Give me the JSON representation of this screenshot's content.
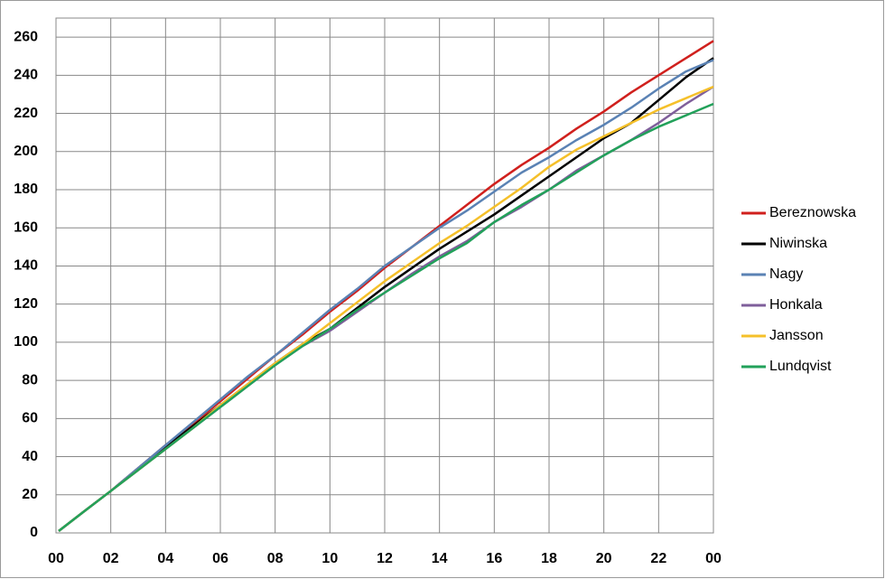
{
  "chart_data": {
    "type": "line",
    "x": [
      0.1,
      1,
      2,
      3,
      4,
      5,
      6,
      7,
      8,
      9,
      10,
      11,
      12,
      13,
      14,
      15,
      16,
      17,
      18,
      19,
      20,
      21,
      22,
      23,
      24
    ],
    "xlim": [
      0,
      24
    ],
    "xticks": [
      {
        "value": 0,
        "label": "00"
      },
      {
        "value": 2,
        "label": "02"
      },
      {
        "value": 4,
        "label": "04"
      },
      {
        "value": 6,
        "label": "06"
      },
      {
        "value": 8,
        "label": "08"
      },
      10,
      12,
      14,
      16,
      18,
      20,
      22,
      {
        "value": 24,
        "label": "00"
      }
    ],
    "ylim": [
      0,
      270
    ],
    "yticks": [
      0,
      20,
      40,
      60,
      80,
      100,
      120,
      140,
      160,
      180,
      200,
      220,
      240,
      260
    ],
    "grid": true,
    "series": [
      {
        "name": "Bereznowska",
        "color": "#d0201d",
        "values": [
          1,
          11,
          22,
          34,
          46,
          57,
          69,
          81,
          93,
          104,
          116,
          127,
          139,
          150,
          161,
          172,
          183,
          193,
          202,
          212,
          221,
          231,
          240,
          249,
          258
        ]
      },
      {
        "name": "Niwinska",
        "color": "#000000",
        "values": [
          1,
          11,
          22,
          33,
          45,
          56,
          67,
          78,
          89,
          99,
          107,
          118,
          129,
          139,
          149,
          158,
          167,
          177,
          187,
          197,
          207,
          215,
          227,
          239,
          249
        ]
      },
      {
        "name": "Nagy",
        "color": "#5a82b4",
        "values": [
          1,
          11,
          22,
          34,
          46,
          58,
          70,
          82,
          93,
          105,
          117,
          128,
          140,
          150,
          160,
          169,
          179,
          189,
          197,
          206,
          214,
          223,
          233,
          242,
          248
        ]
      },
      {
        "name": "Honkala",
        "color": "#7f5f9b",
        "values": [
          1,
          11,
          22,
          33,
          44,
          55,
          66,
          77,
          88,
          98,
          106,
          116,
          126,
          136,
          145,
          153,
          163,
          171,
          180,
          190,
          198,
          206,
          215,
          225,
          234
        ]
      },
      {
        "name": "Jansson",
        "color": "#f5c02a",
        "values": [
          1,
          11,
          22,
          33,
          44,
          55,
          67,
          78,
          89,
          99,
          110,
          121,
          132,
          142,
          152,
          161,
          171,
          181,
          192,
          201,
          208,
          215,
          222,
          228,
          234
        ]
      },
      {
        "name": "Lundqvist",
        "color": "#22a15a",
        "values": [
          1,
          11,
          22,
          33,
          44,
          55,
          66,
          77,
          88,
          98,
          107,
          117,
          126,
          135,
          144,
          152,
          163,
          172,
          180,
          189,
          198,
          206,
          213,
          219,
          225
        ]
      }
    ]
  }
}
